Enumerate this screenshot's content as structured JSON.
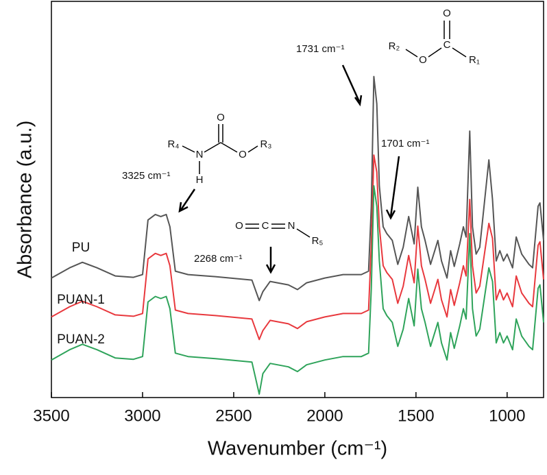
{
  "chart_data": {
    "type": "line",
    "xlabel": "Wavenumber (cm⁻¹)",
    "ylabel": "Absorbance (a.u.)",
    "xlim": [
      3500,
      800
    ],
    "xticks": [
      3500,
      3000,
      2500,
      2000,
      1500,
      1000
    ],
    "ylim": [
      0,
      58
    ],
    "x": [
      3500,
      3400,
      3330,
      3250,
      3150,
      3050,
      3000,
      2970,
      2930,
      2900,
      2870,
      2850,
      2820,
      2750,
      2600,
      2400,
      2360,
      2340,
      2300,
      2200,
      2150,
      2100,
      2000,
      1900,
      1800,
      1760,
      1745,
      1731,
      1715,
      1701,
      1680,
      1660,
      1630,
      1600,
      1570,
      1540,
      1510,
      1490,
      1470,
      1450,
      1420,
      1380,
      1360,
      1330,
      1310,
      1290,
      1260,
      1240,
      1225,
      1205,
      1190,
      1170,
      1150,
      1100,
      1080,
      1060,
      1040,
      1020,
      1000,
      970,
      950,
      920,
      880,
      860,
      830,
      820,
      800
    ],
    "series": [
      {
        "name": "PU",
        "color": "#555555",
        "values": [
          17.5,
          19,
          19.8,
          19,
          17.8,
          17.6,
          18,
          26,
          26.8,
          26.5,
          26.8,
          25,
          18.5,
          18,
          17.7,
          17.2,
          14.2,
          15.5,
          17,
          16.5,
          15.8,
          16.8,
          17.5,
          18,
          18,
          18.5,
          28,
          47,
          43,
          31,
          25,
          24,
          23,
          19.5,
          22,
          26.5,
          22.5,
          30.8,
          25,
          23,
          19.5,
          23,
          20,
          17.5,
          21.5,
          19.2,
          22.5,
          25,
          23.5,
          39,
          25,
          21,
          22,
          34.8,
          29,
          20,
          21.5,
          20,
          21,
          19,
          23.5,
          21,
          19.5,
          19,
          28,
          28.5,
          23
        ]
      },
      {
        "name": "PUAN-1",
        "color": "#e8383d",
        "values": [
          11.8,
          13.3,
          14.1,
          13.3,
          12.1,
          11.9,
          12.3,
          20.3,
          21.1,
          20.8,
          21.1,
          19.3,
          12.8,
          12.3,
          12,
          11.5,
          8.5,
          9.8,
          11.3,
          10.8,
          10.1,
          11.1,
          11.8,
          12.3,
          12.3,
          12.8,
          22.3,
          35.5,
          33,
          25,
          19.3,
          18.3,
          17.3,
          13.8,
          16.3,
          20.8,
          16.8,
          25.1,
          19.3,
          17.3,
          13.8,
          17.3,
          14.3,
          11.8,
          15.8,
          13.5,
          16.8,
          19.3,
          17.8,
          29,
          19.3,
          15.3,
          16.3,
          25.5,
          23.3,
          14.3,
          15.8,
          14.3,
          15.3,
          13.3,
          17.8,
          15.3,
          13.8,
          13.3,
          22.3,
          22.8,
          17.3
        ]
      },
      {
        "name": "PUAN-2",
        "color": "#2ea35a",
        "values": [
          5.5,
          7,
          7.8,
          7,
          5.8,
          5.6,
          6,
          14,
          14.8,
          14.5,
          14.8,
          13,
          6.5,
          6,
          5.7,
          5.2,
          0.5,
          3.5,
          5,
          4.5,
          3.8,
          4.8,
          5.5,
          6,
          6,
          6.5,
          16,
          31,
          28,
          20,
          13,
          12,
          11,
          7.5,
          10,
          14.5,
          10.5,
          18.8,
          13,
          11,
          7.5,
          11,
          8,
          5.5,
          9.5,
          7.2,
          10.5,
          13,
          11.5,
          24,
          13,
          9,
          10,
          19,
          17,
          8,
          9.5,
          8,
          9,
          7,
          11.5,
          9,
          7.5,
          7,
          16,
          16.5,
          11
        ]
      }
    ],
    "annotations": [
      "1731 cm⁻¹",
      "1701 cm⁻¹",
      "3325 cm⁻¹",
      "2268 cm⁻¹"
    ],
    "structures": [
      {
        "atoms": [
          "O",
          "C",
          "R₂",
          "O",
          "R₁"
        ]
      },
      {
        "atoms": [
          "O",
          "R₄",
          "N",
          "O",
          "R₃",
          "H"
        ]
      },
      {
        "atoms": [
          "O",
          "C",
          "N",
          "R₅"
        ]
      }
    ]
  }
}
